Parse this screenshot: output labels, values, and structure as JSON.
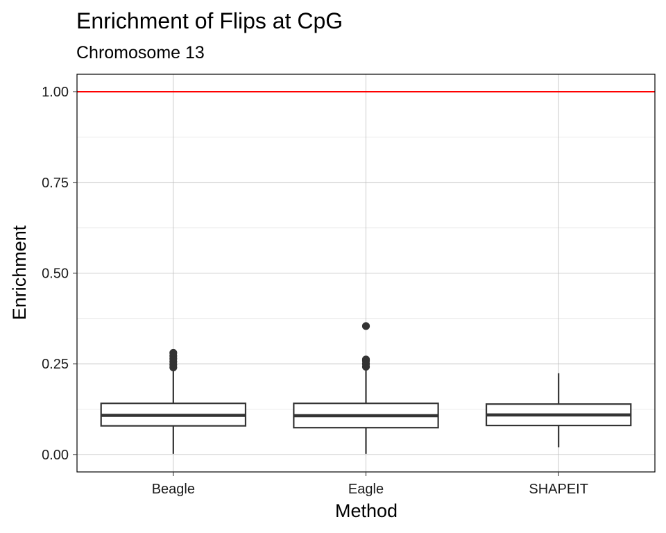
{
  "chart_data": {
    "type": "box",
    "title": "Enrichment of Flips at CpG",
    "subtitle": "Chromosome 13",
    "xlabel": "Method",
    "ylabel": "Enrichment",
    "categories": [
      "Beagle",
      "Eagle",
      "SHAPEIT"
    ],
    "ylim": [
      -0.048,
      1.048
    ],
    "yticks": [
      0.0,
      0.25,
      0.5,
      0.75,
      1.0
    ],
    "ytick_labels": [
      "0.00",
      "0.25",
      "0.50",
      "0.75",
      "1.00"
    ],
    "grid": true,
    "reference_line": {
      "y": 1.0,
      "color": "#ff0000"
    },
    "box_color": "#333333",
    "boxes": [
      {
        "name": "Beagle",
        "whisker_low": 0.002,
        "q1": 0.079,
        "median": 0.108,
        "q3": 0.141,
        "whisker_high": 0.236,
        "outliers": [
          0.24,
          0.248,
          0.256,
          0.264,
          0.272,
          0.28
        ]
      },
      {
        "name": "Eagle",
        "whisker_low": 0.002,
        "q1": 0.074,
        "median": 0.107,
        "q3": 0.141,
        "whisker_high": 0.238,
        "outliers": [
          0.242,
          0.25,
          0.258,
          0.262,
          0.354
        ]
      },
      {
        "name": "SHAPEIT",
        "whisker_low": 0.02,
        "q1": 0.08,
        "median": 0.109,
        "q3": 0.139,
        "whisker_high": 0.224,
        "outliers": []
      }
    ]
  }
}
